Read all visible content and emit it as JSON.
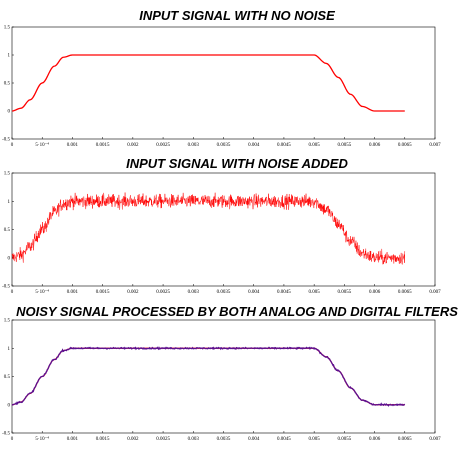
{
  "chart_data": [
    {
      "type": "line",
      "title": "INPUT SIGNAL WITH NO NOISE",
      "xlim": [
        0,
        0.007
      ],
      "ylim": [
        -0.5,
        1.5
      ],
      "x_ticks": [
        "0",
        "5·10⁻⁴",
        "0.001",
        "0.0015",
        "0.002",
        "0.0025",
        "0.003",
        "0.0035",
        "0.004",
        "0.0045",
        "0.005",
        "0.0055",
        "0.006",
        "0.0065",
        "0.007"
      ],
      "x_tick_values": [
        0,
        0.0005,
        0.001,
        0.0015,
        0.002,
        0.0025,
        0.003,
        0.0035,
        0.004,
        0.0045,
        0.005,
        0.0055,
        0.006,
        0.0065,
        0.007
      ],
      "y_ticks": [
        "-0.5",
        "0",
        "0.5",
        "1",
        "1.5"
      ],
      "y_tick_values": [
        -0.5,
        0,
        0.5,
        1,
        1.5
      ],
      "series": [
        {
          "color": "#ff0000",
          "x": [
            0,
            0.00015,
            0.0003,
            0.0005,
            0.0007,
            0.00085,
            0.001,
            0.005,
            0.0052,
            0.0054,
            0.0056,
            0.0058,
            0.006,
            0.0065
          ],
          "y": [
            0,
            0.05,
            0.2,
            0.5,
            0.8,
            0.96,
            1,
            1,
            0.85,
            0.6,
            0.3,
            0.08,
            0,
            0
          ]
        }
      ],
      "noise": 0,
      "grid": false
    },
    {
      "type": "line",
      "title": "INPUT SIGNAL WITH NOISE ADDED",
      "xlim": [
        0,
        0.007
      ],
      "ylim": [
        -0.5,
        1.5
      ],
      "x_ticks": [
        "0",
        "5·10⁻⁴",
        "0.001",
        "0.0015",
        "0.002",
        "0.0025",
        "0.003",
        "0.0035",
        "0.004",
        "0.0045",
        "0.005",
        "0.0055",
        "0.006",
        "0.0065",
        "0.007"
      ],
      "x_tick_values": [
        0,
        0.0005,
        0.001,
        0.0015,
        0.002,
        0.0025,
        0.003,
        0.0035,
        0.004,
        0.0045,
        0.005,
        0.0055,
        0.006,
        0.0065,
        0.007
      ],
      "y_ticks": [
        "-0.5",
        "0",
        "0.5",
        "1",
        "1.5"
      ],
      "y_tick_values": [
        -0.5,
        0,
        0.5,
        1,
        1.5
      ],
      "series": [
        {
          "color": "#ff0000",
          "x": [
            0,
            0.00015,
            0.0003,
            0.0005,
            0.0007,
            0.00085,
            0.001,
            0.005,
            0.0052,
            0.0054,
            0.0056,
            0.0058,
            0.006,
            0.0065
          ],
          "y": [
            0,
            0.05,
            0.2,
            0.5,
            0.8,
            0.96,
            1,
            1,
            0.85,
            0.6,
            0.3,
            0.08,
            0,
            0
          ]
        }
      ],
      "noise": 0.12,
      "grid": false
    },
    {
      "type": "line",
      "title": "NOISY SIGNAL PROCESSED BY BOTH ANALOG AND DIGITAL FILTERS",
      "xlim": [
        0,
        0.007
      ],
      "ylim": [
        -0.5,
        1.5
      ],
      "x_ticks": [
        "0",
        "5·10⁻⁴",
        "0.001",
        "0.0015",
        "0.002",
        "0.0025",
        "0.003",
        "0.0035",
        "0.004",
        "0.0045",
        "0.005",
        "0.0055",
        "0.006",
        "0.0065",
        "0.007"
      ],
      "x_tick_values": [
        0,
        0.0005,
        0.001,
        0.0015,
        0.002,
        0.0025,
        0.003,
        0.0035,
        0.004,
        0.0045,
        0.005,
        0.0055,
        0.006,
        0.0065,
        0.007
      ],
      "y_ticks": [
        "-0.5",
        "0",
        "0.5",
        "1",
        "1.5"
      ],
      "y_tick_values": [
        -0.5,
        0,
        0.5,
        1,
        1.5
      ],
      "series": [
        {
          "color": "#ff0000",
          "x": [
            0,
            0.00015,
            0.0003,
            0.0005,
            0.0007,
            0.00085,
            0.001,
            0.005,
            0.0052,
            0.0054,
            0.0056,
            0.0058,
            0.006,
            0.0065
          ],
          "y": [
            0,
            0.05,
            0.2,
            0.5,
            0.8,
            0.96,
            1,
            1,
            0.85,
            0.6,
            0.3,
            0.08,
            0,
            0
          ]
        },
        {
          "color": "#5a1090",
          "x": [
            0,
            0.00015,
            0.0003,
            0.0005,
            0.0007,
            0.00085,
            0.001,
            0.005,
            0.0052,
            0.0054,
            0.0056,
            0.0058,
            0.006,
            0.0065
          ],
          "y": [
            0,
            0.05,
            0.2,
            0.5,
            0.8,
            0.96,
            1,
            1,
            0.85,
            0.6,
            0.3,
            0.08,
            0,
            0
          ]
        }
      ],
      "noise": 0.012,
      "grid": false
    }
  ]
}
